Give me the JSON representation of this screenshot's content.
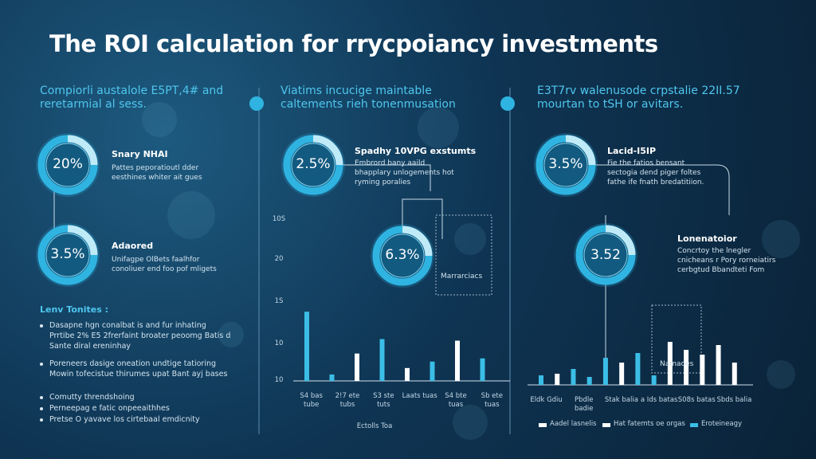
{
  "header": {
    "title": "The ROI calculation for rrycpoiancy investments"
  },
  "columns": [
    {
      "heading": "Compiorli austalole E5PT,4# and reretarmial al sess.",
      "items": [
        {
          "value": "20%",
          "title": "Snary NHAI",
          "text": "Pattes peporatioutl dder eesthines whiter ait gues"
        },
        {
          "value": "3.5%",
          "title": "Adaored",
          "text": "Unifagpe OlBets faalhfor conoliuer end foo pof mligets"
        }
      ],
      "section": "Lenv Tonites :",
      "bullets": [
        "Dasapne hgn conalbat is and fur inhating Prrtibe 2% E5 2frerfaint broater peoomg Batis d Sante diral ereninhay",
        "Poreneers dasige oneation undtige tatioring Mowin tofecistue thirumes upat Bant ayj bases",
        "Comutty threndshoing",
        "Perneepag e fatic onpeeaithhes",
        "Pretse O yavave los cirtebaal emdicnity"
      ]
    },
    {
      "heading": "Viatims incucige maintable caltements rieh tonenmusation",
      "items": [
        {
          "value": "2.5%",
          "title": "Spadhy 10VPG exstumts",
          "text": "Embrord bany aaild bhapplary unlogements hot ryming poralies"
        },
        {
          "value": "6.3%",
          "title": "Marrarciacs"
        }
      ],
      "chart": {
        "ylabels": [
          "10S",
          "20",
          "1S",
          "10",
          "10"
        ],
        "xlabels": [
          "S4 bas tube",
          "2!7 ete tubs",
          "S3 ste tuts",
          "Laats tuas",
          "S4 bte tuas",
          "Sb ete tuas"
        ],
        "xtitle": "Ectolls Toa",
        "ylim": [
          0,
          100
        ],
        "values": [
          43,
          4,
          17,
          26,
          8,
          12,
          25,
          14
        ],
        "colors": [
          "#3bbde6",
          "#3bbde6",
          "#ffffff",
          "#3bbde6",
          "#ffffff",
          "#3bbde6",
          "#ffffff",
          "#3bbde6"
        ]
      }
    },
    {
      "heading": "E3T7rv walenusode crpstalie 22II.57 mourtan to tSH or avitars.",
      "items": [
        {
          "value": "3.5%",
          "title": "Lacid-I5IP",
          "text": "Fie the fatios bensant sectogia dend piger foltes fathe ife fnath bredatitiion."
        },
        {
          "value": "3.52",
          "title": "Lonenatoior",
          "text": "Concrtoy the lnegler cnicheans r Pory rorneiatirs cerbgtud Bbandteti Fom"
        }
      ],
      "note": "Namaoes",
      "chart": {
        "xlabels": [
          "Eldk Gdiu",
          "Pbdle badie",
          "Stak balia",
          "a Ids batas",
          "S08s batas",
          "Sbds balia"
        ],
        "ylim": [
          0,
          100
        ],
        "values": [
          6,
          7,
          10,
          5,
          17,
          14,
          20,
          6,
          27,
          22,
          19,
          25,
          14
        ],
        "colors": [
          "#3bbde6",
          "#ffffff",
          "#3bbde6",
          "#3bbde6",
          "#3bbde6",
          "#ffffff",
          "#3bbde6",
          "#3bbde6",
          "#ffffff",
          "#ffffff",
          "#ffffff",
          "#ffffff",
          "#ffffff"
        ],
        "legend": [
          "Aadel lasnelis",
          "Hat fatemts oe orgas",
          "Eroteineagy"
        ]
      }
    }
  ]
}
